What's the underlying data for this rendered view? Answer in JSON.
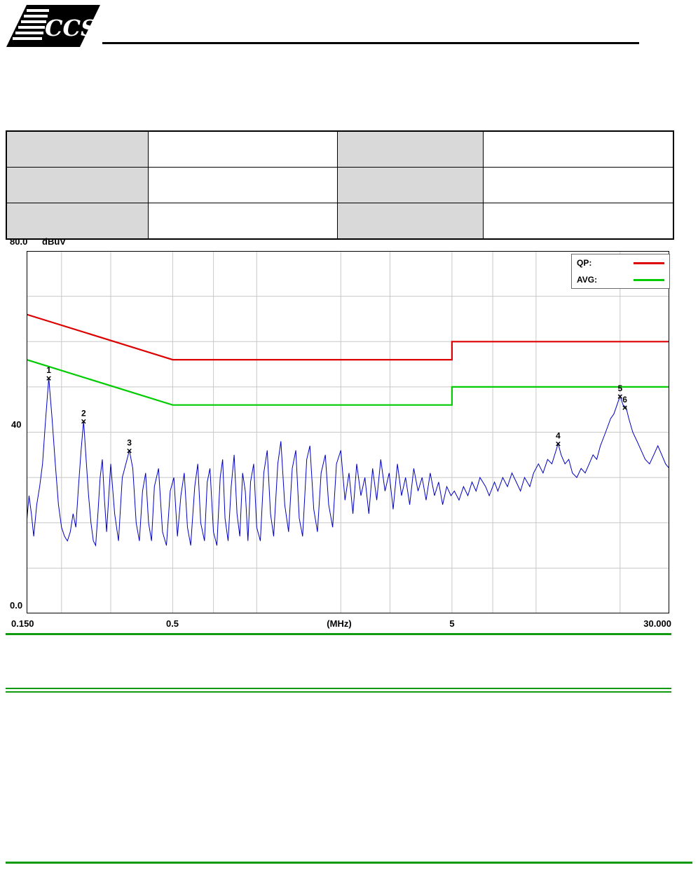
{
  "header": {
    "logo_text": "CCS"
  },
  "info_table": {
    "rows": [
      {
        "cells": [
          "",
          "",
          "",
          ""
        ]
      },
      {
        "cells": [
          "",
          "",
          "",
          ""
        ]
      },
      {
        "cells": [
          "",
          "",
          "",
          ""
        ]
      }
    ]
  },
  "colors": {
    "rule_green": "#109a10"
  },
  "chart_data": {
    "type": "line",
    "description": "Conducted emissions spectrum with QP and AVG limit lines",
    "x_axis": {
      "scale": "log",
      "min": 0.15,
      "max": 30,
      "title": "(MHz)",
      "ticks": [
        {
          "value": 0.15,
          "label": "0.150"
        },
        {
          "value": 0.5,
          "label": "0.5"
        },
        {
          "value": 5,
          "label": "5"
        },
        {
          "value": 30,
          "label": "30.000"
        }
      ]
    },
    "y_axis": {
      "min": 0,
      "max": 80,
      "unit": "dBuV",
      "ticks": [
        {
          "value": 80,
          "label": "80.0"
        },
        {
          "value": 40,
          "label": "40"
        },
        {
          "value": 0,
          "label": "0.0"
        }
      ]
    },
    "colors": {
      "grid": "#c8c8c8",
      "border": "#000000"
    },
    "grid": {
      "x_lines": [
        0.2,
        0.3,
        0.5,
        0.7,
        1,
        2,
        3,
        5,
        7,
        10,
        20
      ],
      "y_lines": [
        10,
        20,
        30,
        40,
        50,
        60,
        70
      ]
    },
    "legend": [
      {
        "label": "QP:",
        "color": "#dd0000"
      },
      {
        "label": "AVG:",
        "color": "#00cc00"
      }
    ],
    "limits": [
      {
        "name": "QP limit",
        "color": "#dd0000",
        "points": [
          [
            0.15,
            66
          ],
          [
            0.5,
            56
          ],
          [
            5,
            56
          ],
          [
            5,
            60
          ],
          [
            30,
            60
          ]
        ]
      },
      {
        "name": "AVG limit",
        "color": "#00cc00",
        "points": [
          [
            0.15,
            56
          ],
          [
            0.5,
            46
          ],
          [
            5,
            46
          ],
          [
            5,
            50
          ],
          [
            30,
            50
          ]
        ]
      }
    ],
    "markers": [
      {
        "n": "1",
        "f": 0.18,
        "v": 52
      },
      {
        "n": "2",
        "f": 0.24,
        "v": 42.5
      },
      {
        "n": "3",
        "f": 0.35,
        "v": 36
      },
      {
        "n": "4",
        "f": 12,
        "v": 37.5
      },
      {
        "n": "5",
        "f": 20,
        "v": 48
      },
      {
        "n": "6",
        "f": 20.8,
        "v": 45.5
      }
    ],
    "trace": {
      "name": "measurement",
      "color": "#0000c0",
      "points": [
        [
          0.15,
          20
        ],
        [
          0.153,
          26
        ],
        [
          0.156,
          22
        ],
        [
          0.159,
          17
        ],
        [
          0.163,
          24
        ],
        [
          0.167,
          28
        ],
        [
          0.171,
          33
        ],
        [
          0.175,
          42
        ],
        [
          0.18,
          52
        ],
        [
          0.185,
          43
        ],
        [
          0.19,
          33
        ],
        [
          0.195,
          24
        ],
        [
          0.2,
          19
        ],
        [
          0.205,
          17
        ],
        [
          0.21,
          16
        ],
        [
          0.215,
          18
        ],
        [
          0.22,
          22
        ],
        [
          0.225,
          19
        ],
        [
          0.23,
          28
        ],
        [
          0.235,
          36
        ],
        [
          0.24,
          42.5
        ],
        [
          0.245,
          34
        ],
        [
          0.25,
          26
        ],
        [
          0.255,
          20
        ],
        [
          0.26,
          16
        ],
        [
          0.265,
          15
        ],
        [
          0.27,
          22
        ],
        [
          0.275,
          30
        ],
        [
          0.28,
          34
        ],
        [
          0.285,
          25
        ],
        [
          0.29,
          18
        ],
        [
          0.3,
          33
        ],
        [
          0.31,
          22
        ],
        [
          0.32,
          16
        ],
        [
          0.33,
          30
        ],
        [
          0.34,
          33
        ],
        [
          0.35,
          36
        ],
        [
          0.36,
          32
        ],
        [
          0.37,
          20
        ],
        [
          0.38,
          16
        ],
        [
          0.39,
          27
        ],
        [
          0.4,
          31
        ],
        [
          0.41,
          20
        ],
        [
          0.42,
          16
        ],
        [
          0.43,
          28
        ],
        [
          0.445,
          32
        ],
        [
          0.46,
          18
        ],
        [
          0.475,
          15
        ],
        [
          0.49,
          27
        ],
        [
          0.505,
          30
        ],
        [
          0.52,
          17
        ],
        [
          0.535,
          26
        ],
        [
          0.55,
          31
        ],
        [
          0.565,
          19
        ],
        [
          0.58,
          15
        ],
        [
          0.6,
          28
        ],
        [
          0.615,
          33
        ],
        [
          0.63,
          20
        ],
        [
          0.65,
          16
        ],
        [
          0.665,
          29
        ],
        [
          0.68,
          32
        ],
        [
          0.7,
          18
        ],
        [
          0.72,
          15
        ],
        [
          0.74,
          30
        ],
        [
          0.755,
          34
        ],
        [
          0.77,
          21
        ],
        [
          0.79,
          16
        ],
        [
          0.81,
          28
        ],
        [
          0.83,
          35
        ],
        [
          0.85,
          22
        ],
        [
          0.87,
          17
        ],
        [
          0.89,
          31
        ],
        [
          0.91,
          27
        ],
        [
          0.93,
          16
        ],
        [
          0.95,
          29
        ],
        [
          0.975,
          33
        ],
        [
          1.0,
          19
        ],
        [
          1.03,
          16
        ],
        [
          1.06,
          31
        ],
        [
          1.09,
          36
        ],
        [
          1.12,
          22
        ],
        [
          1.15,
          17
        ],
        [
          1.19,
          33
        ],
        [
          1.22,
          38
        ],
        [
          1.26,
          24
        ],
        [
          1.3,
          18
        ],
        [
          1.34,
          32
        ],
        [
          1.38,
          36
        ],
        [
          1.42,
          21
        ],
        [
          1.46,
          17
        ],
        [
          1.51,
          34
        ],
        [
          1.55,
          37
        ],
        [
          1.6,
          23
        ],
        [
          1.65,
          18
        ],
        [
          1.7,
          31
        ],
        [
          1.76,
          35
        ],
        [
          1.81,
          24
        ],
        [
          1.87,
          19
        ],
        [
          1.93,
          33
        ],
        [
          2.0,
          36
        ],
        [
          2.07,
          25
        ],
        [
          2.14,
          31
        ],
        [
          2.21,
          22
        ],
        [
          2.28,
          33
        ],
        [
          2.36,
          26
        ],
        [
          2.44,
          30
        ],
        [
          2.52,
          22
        ],
        [
          2.6,
          32
        ],
        [
          2.69,
          25
        ],
        [
          2.78,
          34
        ],
        [
          2.88,
          27
        ],
        [
          2.98,
          31
        ],
        [
          3.08,
          23
        ],
        [
          3.19,
          33
        ],
        [
          3.3,
          26
        ],
        [
          3.41,
          30
        ],
        [
          3.53,
          24
        ],
        [
          3.65,
          32
        ],
        [
          3.78,
          27
        ],
        [
          3.91,
          30
        ],
        [
          4.04,
          25
        ],
        [
          4.18,
          31
        ],
        [
          4.33,
          26
        ],
        [
          4.48,
          29
        ],
        [
          4.63,
          24
        ],
        [
          4.79,
          28
        ],
        [
          4.96,
          26
        ],
        [
          5.1,
          27
        ],
        [
          5.3,
          25
        ],
        [
          5.5,
          28
        ],
        [
          5.7,
          26
        ],
        [
          5.9,
          29
        ],
        [
          6.1,
          27
        ],
        [
          6.3,
          30
        ],
        [
          6.6,
          28
        ],
        [
          6.8,
          26
        ],
        [
          7.1,
          29
        ],
        [
          7.3,
          27
        ],
        [
          7.6,
          30
        ],
        [
          7.9,
          28
        ],
        [
          8.2,
          31
        ],
        [
          8.5,
          29
        ],
        [
          8.8,
          27
        ],
        [
          9.1,
          30
        ],
        [
          9.5,
          28
        ],
        [
          9.8,
          31
        ],
        [
          10.2,
          33
        ],
        [
          10.6,
          31
        ],
        [
          11.0,
          34
        ],
        [
          11.4,
          33
        ],
        [
          11.8,
          36
        ],
        [
          12.0,
          37.5
        ],
        [
          12.3,
          35
        ],
        [
          12.7,
          33
        ],
        [
          13.1,
          34
        ],
        [
          13.5,
          31
        ],
        [
          14.0,
          30
        ],
        [
          14.5,
          32
        ],
        [
          15.0,
          31
        ],
        [
          15.5,
          33
        ],
        [
          16.0,
          35
        ],
        [
          16.5,
          34
        ],
        [
          17.0,
          37
        ],
        [
          17.5,
          39
        ],
        [
          18.0,
          41
        ],
        [
          18.5,
          43
        ],
        [
          19.0,
          44
        ],
        [
          19.5,
          46
        ],
        [
          20.0,
          48
        ],
        [
          20.5,
          46
        ],
        [
          21.0,
          45.5
        ],
        [
          21.5,
          43
        ],
        [
          22.2,
          40
        ],
        [
          23.0,
          38
        ],
        [
          23.8,
          36
        ],
        [
          24.6,
          34
        ],
        [
          25.5,
          33
        ],
        [
          26.4,
          35
        ],
        [
          27.3,
          37
        ],
        [
          28.2,
          35
        ],
        [
          29.1,
          33
        ],
        [
          30.0,
          32
        ]
      ]
    }
  }
}
